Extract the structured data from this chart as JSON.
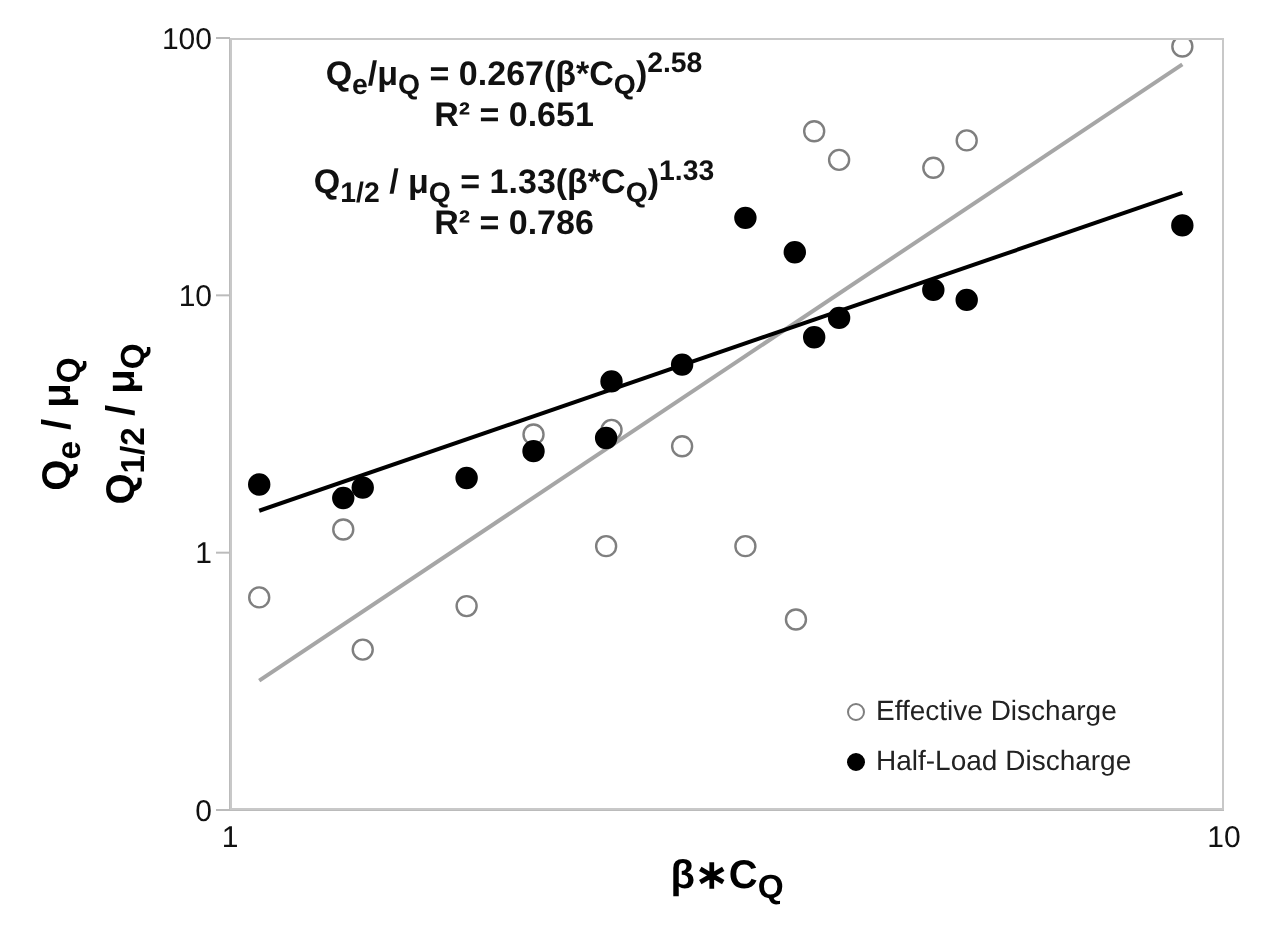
{
  "chart_data": {
    "type": "scatter",
    "xlabel": "β∗C$_{Q}$",
    "ylabel": "Q$_{e}$ / μ$_{Q}$\nQ$_{1/2}$ / μ$_{Q}$",
    "log": "xy",
    "xlim": [
      1,
      10
    ],
    "xticks": [
      1,
      10
    ],
    "ylim": [
      0.1,
      100
    ],
    "yticks": [
      {
        "value": 0.1,
        "label": "0"
      },
      1,
      10,
      100
    ],
    "grid": false,
    "legend": "bottom right",
    "annotations": [
      "Q$_{e}$/μ$_{Q}$ = 0.267(β*C$_{Q}$)$^{2.58}$",
      "R² = 0.651",
      "Q$_{1/2}$ / μ$_{Q}$ = 1.33(β*C$_{Q}$)$^{1.33}$",
      "R² = 0.786"
    ],
    "series": [
      {
        "name": "Effective Discharge",
        "marker": "circle",
        "color": "#7f7f7f",
        "x": [
          1.07,
          1.3,
          1.36,
          1.73,
          2.02,
          2.39,
          2.42,
          2.85,
          3.3,
          3.71,
          3.87,
          4.1,
          5.1,
          5.51,
          9.08
        ],
        "values": [
          0.67,
          1.23,
          0.42,
          0.62,
          2.88,
          1.06,
          3.0,
          2.59,
          1.06,
          0.55,
          43.4,
          33.6,
          31.3,
          40,
          92.7
        ]
      },
      {
        "name": "Half-Load Discharge",
        "marker": "circle",
        "color": "#000000",
        "x": [
          1.07,
          1.3,
          1.36,
          1.73,
          2.02,
          2.39,
          2.42,
          2.85,
          3.3,
          3.7,
          3.87,
          4.1,
          5.1,
          5.51,
          9.08
        ],
        "values": [
          1.84,
          1.63,
          1.79,
          1.95,
          2.48,
          2.79,
          4.63,
          5.38,
          20.0,
          14.7,
          6.87,
          8.17,
          10.5,
          9.6,
          18.7
        ]
      },
      {
        "type": "line",
        "marker": "none",
        "color": "#a6a6a6",
        "x": [
          1.07,
          9.08
        ],
        "values": [
          0.318,
          79
        ]
      },
      {
        "type": "line",
        "marker": "none",
        "color": "#000000",
        "x": [
          1.07,
          9.08
        ],
        "values": [
          1.455,
          25
        ]
      }
    ]
  }
}
